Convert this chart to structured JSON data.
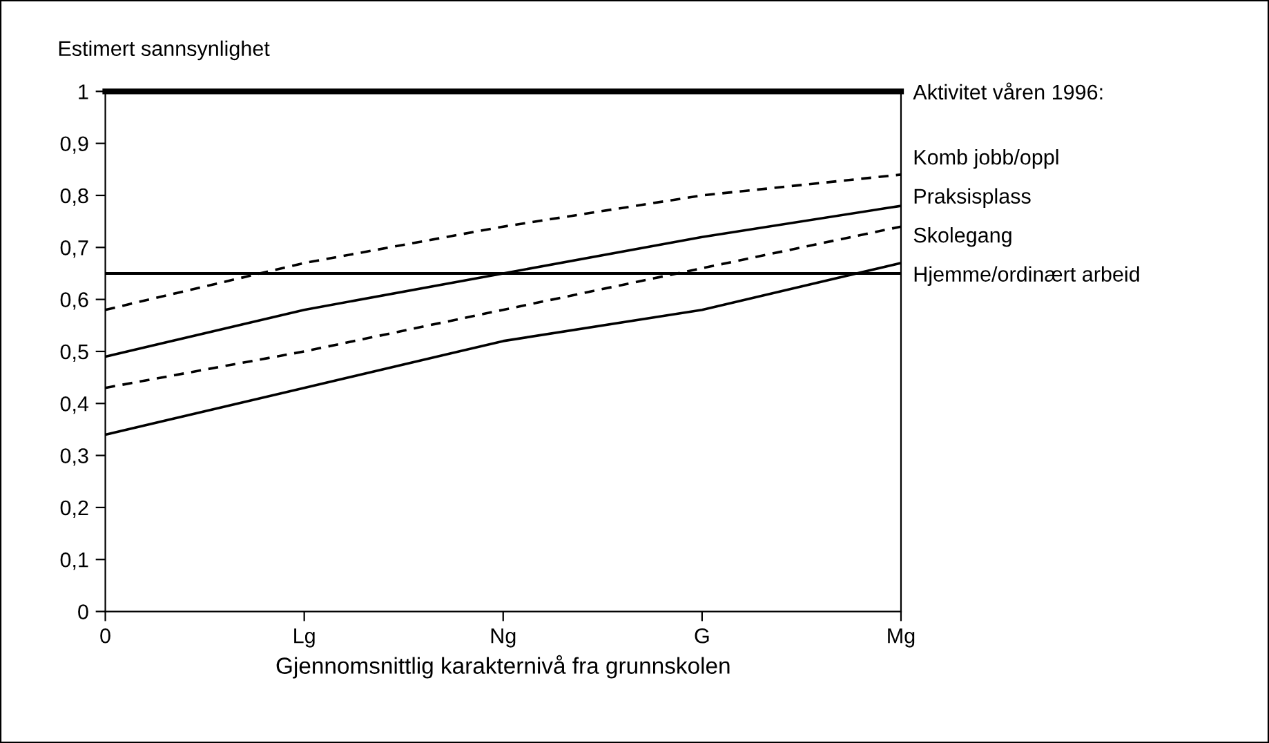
{
  "chart_data": {
    "type": "line",
    "ylabel": "Estimert sannsynlighet",
    "xlabel": "Gjennomsnittlig karakternivå fra grunnskolen",
    "legend_title": "Aktivitet våren 1996:",
    "legend": "right",
    "grid": false,
    "marker": "none",
    "categories": [
      "0",
      "Lg",
      "Ng",
      "G",
      "Mg"
    ],
    "ylim": [
      0,
      1
    ],
    "yticks": [
      0,
      {
        "value": 0.1,
        "label": "0,1"
      },
      {
        "value": 0.2,
        "label": "0,2"
      },
      {
        "value": 0.3,
        "label": "0,3"
      },
      {
        "value": 0.4,
        "label": "0,4"
      },
      {
        "value": 0.5,
        "label": "0,5"
      },
      {
        "value": 0.6,
        "label": "0,6"
      },
      {
        "value": 0.7,
        "label": "0,7"
      },
      {
        "value": 0.8,
        "label": "0,8"
      },
      {
        "value": 0.9,
        "label": "0,9"
      },
      1
    ],
    "ref_lines": [
      {
        "axis": "y",
        "value": 0.65,
        "color": "#000000",
        "line_style": "solid"
      }
    ],
    "series": [
      {
        "name": "Komb jobb/oppl",
        "color": "#000000",
        "line_style": "dashed",
        "values": [
          0.58,
          0.67,
          0.74,
          0.8,
          0.84
        ]
      },
      {
        "name": "Praksisplass",
        "color": "#000000",
        "line_style": "solid",
        "values": [
          0.49,
          0.58,
          0.65,
          0.72,
          0.78
        ]
      },
      {
        "name": "Skolegang",
        "color": "#000000",
        "line_style": "dashed",
        "values": [
          0.43,
          0.5,
          0.58,
          0.66,
          0.74
        ]
      },
      {
        "name": "Hjemme/ordinært arbeid",
        "color": "#000000",
        "line_style": "solid",
        "values": [
          0.34,
          0.43,
          0.52,
          0.58,
          0.67
        ]
      }
    ]
  }
}
